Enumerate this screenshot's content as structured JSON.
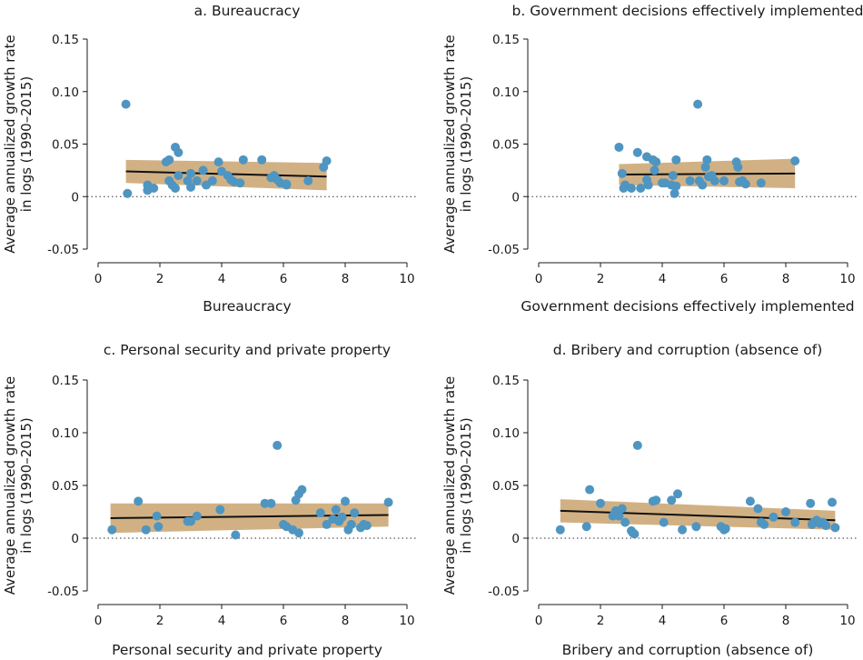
{
  "chart_data": [
    {
      "type": "scatter",
      "title": "a. Bureaucracy",
      "xlabel": "Bureaucracy",
      "ylabel": [
        "Average annualized growth rate",
        "in logs (1990–2015)"
      ],
      "xlim": [
        0,
        10
      ],
      "ylim": [
        -0.05,
        0.15
      ],
      "xticks": [
        "0",
        "2",
        "4",
        "6",
        "8",
        "10"
      ],
      "yticks": [
        "-0.05",
        "0",
        "0.05",
        "0.10",
        "0.15"
      ],
      "zero_reference_line": "dotted",
      "fit": {
        "x": [
          0.9,
          7.4
        ],
        "y": [
          0.024,
          0.019
        ],
        "ci_lower": [
          0.013,
          0.006
        ],
        "ci_upper": [
          0.035,
          0.032
        ]
      },
      "x": [
        0.9,
        0.95,
        1.6,
        1.6,
        1.8,
        2.2,
        2.3,
        2.3,
        2.4,
        2.5,
        2.5,
        2.6,
        2.6,
        2.9,
        3.0,
        3.0,
        3.2,
        3.4,
        3.5,
        3.7,
        3.9,
        4.0,
        4.2,
        4.3,
        4.4,
        4.6,
        4.7,
        5.3,
        5.6,
        5.7,
        5.8,
        5.9,
        6.1,
        6.1,
        6.8,
        7.3,
        7.4
      ],
      "y": [
        0.088,
        0.003,
        0.011,
        0.006,
        0.008,
        0.033,
        0.035,
        0.015,
        0.011,
        0.047,
        0.008,
        0.042,
        0.02,
        0.015,
        0.022,
        0.009,
        0.015,
        0.025,
        0.011,
        0.015,
        0.033,
        0.024,
        0.02,
        0.016,
        0.014,
        0.013,
        0.035,
        0.035,
        0.018,
        0.02,
        0.016,
        0.013,
        0.012,
        0.011,
        0.015,
        0.028,
        0.034
      ]
    },
    {
      "type": "scatter",
      "title": "b. Government decisions effectively implemented",
      "xlabel": "Government decisions effectively implemented",
      "ylabel": [
        "Average annualized growth rate",
        "in logs (1990–2015)"
      ],
      "xlim": [
        0,
        10
      ],
      "ylim": [
        -0.05,
        0.15
      ],
      "xticks": [
        "0",
        "2",
        "4",
        "6",
        "8",
        "10"
      ],
      "yticks": [
        "-0.05",
        "0",
        "0.05",
        "0.10",
        "0.15"
      ],
      "zero_reference_line": "dotted",
      "fit": {
        "x": [
          2.6,
          8.3
        ],
        "y": [
          0.021,
          0.022
        ],
        "ci_lower": [
          0.011,
          0.008
        ],
        "ci_upper": [
          0.031,
          0.036
        ]
      },
      "x": [
        2.6,
        2.7,
        2.75,
        2.8,
        3.0,
        3.2,
        3.3,
        3.5,
        3.5,
        3.55,
        3.7,
        3.75,
        3.8,
        4.0,
        4.1,
        4.3,
        4.35,
        4.4,
        4.45,
        4.45,
        4.9,
        5.2,
        5.3,
        5.4,
        5.45,
        5.5,
        5.6,
        5.7,
        6.0,
        6.4,
        6.45,
        6.5,
        6.6,
        6.7,
        7.2,
        8.3,
        5.15
      ],
      "y": [
        0.047,
        0.022,
        0.008,
        0.011,
        0.008,
        0.042,
        0.008,
        0.016,
        0.038,
        0.011,
        0.035,
        0.025,
        0.033,
        0.013,
        0.013,
        0.011,
        0.02,
        0.003,
        0.035,
        0.01,
        0.015,
        0.015,
        0.011,
        0.028,
        0.035,
        0.019,
        0.02,
        0.015,
        0.015,
        0.033,
        0.028,
        0.014,
        0.015,
        0.012,
        0.013,
        0.034,
        0.088
      ]
    },
    {
      "type": "scatter",
      "title": "c. Personal security and private property",
      "xlabel": "Personal security and private property",
      "ylabel": [
        "Average annualized growth rate",
        "in logs (1990–2015)"
      ],
      "xlim": [
        0,
        10
      ],
      "ylim": [
        -0.05,
        0.15
      ],
      "xticks": [
        "0",
        "2",
        "4",
        "6",
        "8",
        "10"
      ],
      "yticks": [
        "-0.05",
        "0",
        "0.05",
        "0.10",
        "0.15"
      ],
      "zero_reference_line": "dotted",
      "fit": {
        "x": [
          0.4,
          9.4
        ],
        "y": [
          0.019,
          0.022
        ],
        "ci_lower": [
          0.005,
          0.011
        ],
        "ci_upper": [
          0.033,
          0.033
        ]
      },
      "x": [
        0.45,
        1.3,
        1.55,
        1.9,
        1.95,
        2.9,
        3.0,
        3.2,
        3.95,
        4.45,
        5.4,
        5.6,
        5.8,
        6.0,
        6.1,
        6.3,
        6.4,
        6.5,
        6.5,
        6.6,
        7.2,
        7.4,
        7.6,
        7.7,
        7.8,
        7.9,
        8.0,
        8.1,
        8.2,
        8.3,
        8.5,
        8.6,
        8.7,
        9.4
      ],
      "y": [
        0.008,
        0.035,
        0.008,
        0.021,
        0.011,
        0.016,
        0.016,
        0.021,
        0.027,
        0.003,
        0.033,
        0.033,
        0.088,
        0.013,
        0.011,
        0.008,
        0.036,
        0.005,
        0.042,
        0.046,
        0.024,
        0.013,
        0.018,
        0.027,
        0.016,
        0.02,
        0.035,
        0.008,
        0.013,
        0.024,
        0.01,
        0.013,
        0.012,
        0.034
      ]
    },
    {
      "type": "scatter",
      "title": "d. Bribery and corruption (absence of)",
      "xlabel": "Bribery and corruption (absence of)",
      "ylabel": [
        "Average annualized growth rate",
        "in logs (1990–2015)"
      ],
      "xlim": [
        0,
        10
      ],
      "ylim": [
        -0.05,
        0.15
      ],
      "xticks": [
        "0",
        "2",
        "4",
        "6",
        "8",
        "10"
      ],
      "yticks": [
        "-0.05",
        "0",
        "0.05",
        "0.10",
        "0.15"
      ],
      "zero_reference_line": "dotted",
      "fit": {
        "x": [
          0.7,
          9.6
        ],
        "y": [
          0.026,
          0.017
        ],
        "ci_lower": [
          0.015,
          0.008
        ],
        "ci_upper": [
          0.037,
          0.026
        ]
      },
      "x": [
        0.7,
        1.55,
        1.65,
        2.0,
        2.4,
        2.5,
        2.6,
        2.7,
        2.8,
        3.0,
        3.05,
        3.1,
        3.2,
        3.7,
        3.8,
        4.05,
        4.3,
        4.5,
        4.65,
        5.1,
        5.9,
        6.0,
        6.05,
        6.85,
        7.1,
        7.2,
        7.3,
        7.6,
        8.0,
        8.3,
        8.8,
        8.85,
        8.9,
        9.0,
        9.1,
        9.2,
        9.3,
        9.5,
        9.6
      ],
      "y": [
        0.008,
        0.011,
        0.046,
        0.033,
        0.021,
        0.026,
        0.021,
        0.028,
        0.015,
        0.007,
        0.005,
        0.004,
        0.088,
        0.035,
        0.036,
        0.015,
        0.036,
        0.042,
        0.008,
        0.011,
        0.011,
        0.008,
        0.009,
        0.035,
        0.028,
        0.015,
        0.013,
        0.02,
        0.025,
        0.015,
        0.033,
        0.013,
        0.015,
        0.017,
        0.014,
        0.015,
        0.012,
        0.034,
        0.01
      ]
    }
  ]
}
